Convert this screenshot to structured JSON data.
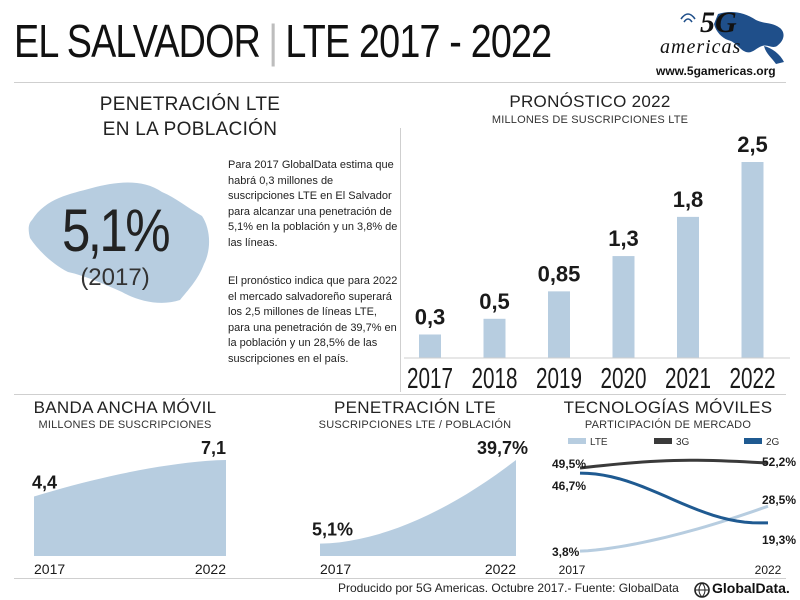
{
  "header": {
    "country": "EL SALVADOR",
    "separator": "|",
    "subtitle": "LTE 2017 - 2022",
    "logo_5g": "5G",
    "logo_word": "americas",
    "url": "www.5gamericas.org"
  },
  "penetration_panel": {
    "title_line1": "PENETRACIÓN LTE",
    "title_line2": "EN LA POBLACIÓN",
    "value": "5,1%",
    "year": "(2017)",
    "paragraph1": "Para 2017 GlobalData estima que habrá 0,3 millones de suscripciones LTE en El Salvador para alcanzar una penetración de 5,1% en la población y un 3,8% de las líneas.",
    "paragraph2": "El pronóstico indica que para 2022 el mercado salvadoreño superará los 2,5 millones de líneas LTE, para una penetración de 39,7% en la población y un 28,5% de las suscripciones en el país."
  },
  "forecast_panel": {
    "title": "PRONÓSTICO 2022",
    "subtitle": "MILLONES DE SUSCRIPCIONES LTE"
  },
  "broadband_panel": {
    "title": "BANDA ANCHA MÓVIL",
    "subtitle": "MILLONES DE SUSCRIPCIONES"
  },
  "lte_pen_panel": {
    "title": "PENETRACIÓN LTE",
    "subtitle": "SUSCRIPCIONES LTE / POBLACIÓN"
  },
  "tech_panel": {
    "title": "TECNOLOGÍAS MÓVILES",
    "subtitle": "PARTICIPACIÓN DE MERCADO"
  },
  "footer": {
    "text": "Producido por 5G Americas. Octubre  2017.- Fuente: GlobalData",
    "brand": "GlobalData."
  },
  "colors": {
    "bar": "#b7cde0",
    "lte": "#b7cde0",
    "g3": "#3a3a3a",
    "g2": "#1f5a91",
    "map": "#b7cde0"
  },
  "chart_data": [
    {
      "type": "bar",
      "categories": [
        "2017",
        "2018",
        "2019",
        "2020",
        "2021",
        "2022"
      ],
      "values": [
        0.3,
        0.5,
        0.85,
        1.3,
        1.8,
        2.5
      ],
      "labels": [
        "0,3",
        "0,5",
        "0,85",
        "1,3",
        "1,8",
        "2,5"
      ],
      "ylim": [
        0,
        2.5
      ],
      "grid": false
    },
    {
      "type": "area",
      "x": [
        "2017",
        "2022"
      ],
      "values": [
        4.4,
        7.1
      ],
      "labels": [
        "4,4",
        "7,1"
      ]
    },
    {
      "type": "area",
      "x": [
        "2017",
        "2022"
      ],
      "values": [
        5.1,
        39.7
      ],
      "labels": [
        "5,1%",
        "39,7%"
      ]
    },
    {
      "type": "line",
      "x": [
        "2017",
        "2022"
      ],
      "series": [
        {
          "name": "LTE",
          "start": 3.8,
          "end": 28.5,
          "start_label": "3,8%",
          "end_label": "28,5%"
        },
        {
          "name": "3G",
          "start": 49.5,
          "end": 52.2,
          "start_label": "49,5%",
          "end_label": "52,2%"
        },
        {
          "name": "2G",
          "start": 46.7,
          "end": 19.3,
          "start_label": "46,7%",
          "end_label": "19,3%"
        }
      ],
      "legend": "top"
    }
  ]
}
